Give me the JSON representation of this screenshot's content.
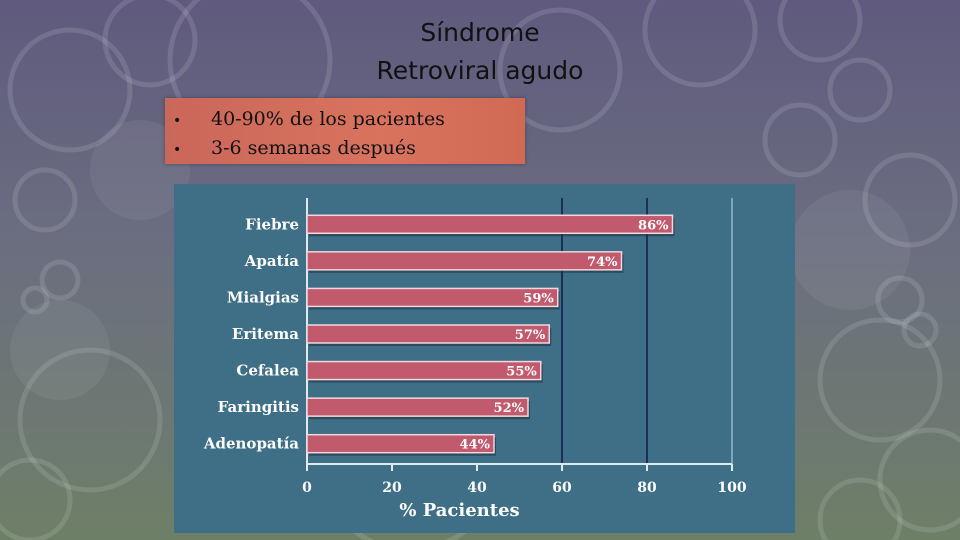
{
  "slide": {
    "title_line1": "Síndrome",
    "title_line2": "Retroviral agudo",
    "bullets": [
      "40-90% de los pacientes",
      "3-6 semanas después"
    ]
  },
  "chart_data": {
    "type": "bar",
    "orientation": "horizontal",
    "categories": [
      "Fiebre",
      "Apatía",
      "Mialgias",
      "Eritema",
      "Cefalea",
      "Faringitis",
      "Adenopatía"
    ],
    "values": [
      86,
      74,
      59,
      57,
      55,
      52,
      44
    ],
    "value_labels": [
      "86%",
      "74%",
      "59%",
      "57%",
      "55%",
      "52%",
      "44%"
    ],
    "xlabel": "% Pacientes",
    "xlim": [
      0,
      100
    ],
    "xticks": [
      0,
      20,
      40,
      60,
      80,
      100
    ],
    "colors": {
      "bar": "#c25a6e",
      "panel": "#3f6f86",
      "text": "#ffffff"
    }
  }
}
